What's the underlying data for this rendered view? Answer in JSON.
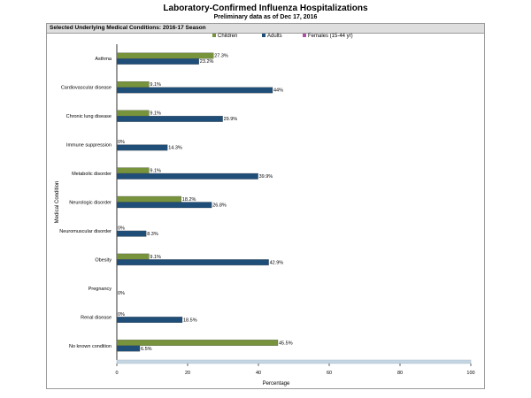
{
  "header": {
    "title": "Laboratory-Confirmed Influenza Hospitalizations",
    "subtitle": "Preliminary data as of Dec 17, 2016",
    "panel_title": "Selected Underlying Medical Conditions: 2016-17 Season"
  },
  "chart_data": {
    "type": "bar",
    "orientation": "horizontal",
    "categories": [
      "Asthma",
      "Cardiovascular disease",
      "Chronic lung disease",
      "Immune suppression",
      "Metabolic disorder",
      "Neurologic disorder",
      "Neuromuscular disorder",
      "Obesity",
      "Pregnancy",
      "Renal disease",
      "No known condition"
    ],
    "series": [
      {
        "name": "Children",
        "color": "#77933c",
        "values": [
          27.3,
          9.1,
          9.1,
          0,
          9.1,
          18.2,
          0,
          9.1,
          null,
          0,
          45.5
        ],
        "labels": [
          "27.3%",
          "9.1%",
          "9.1%",
          "0%",
          "9.1%",
          "18.2%",
          "0%",
          "9.1%",
          "",
          "0%",
          "45.5%"
        ]
      },
      {
        "name": "Adults",
        "color": "#1f4e79",
        "values": [
          23.2,
          44,
          29.9,
          14.3,
          39.9,
          26.8,
          8.3,
          42.9,
          null,
          18.5,
          6.5
        ],
        "labels": [
          "23.2%",
          "44%",
          "29.9%",
          "14.3%",
          "39.9%",
          "26.8%",
          "8.3%",
          "42.9%",
          "",
          "18.5%",
          "6.5%"
        ]
      },
      {
        "name": "Females (15-44 yr)",
        "color": "#b04fa8",
        "values": [
          null,
          null,
          null,
          null,
          null,
          null,
          null,
          null,
          0,
          null,
          null
        ],
        "labels": [
          "",
          "",
          "",
          "",
          "",
          "",
          "",
          "",
          "0%",
          "",
          ""
        ]
      }
    ],
    "xlabel": "Percentage",
    "ylabel": "Medical Condition",
    "xlim": [
      0,
      100
    ],
    "xticks": [
      "0",
      "20",
      "40",
      "60",
      "80",
      "100"
    ],
    "grid": false,
    "legend_position": "top"
  }
}
